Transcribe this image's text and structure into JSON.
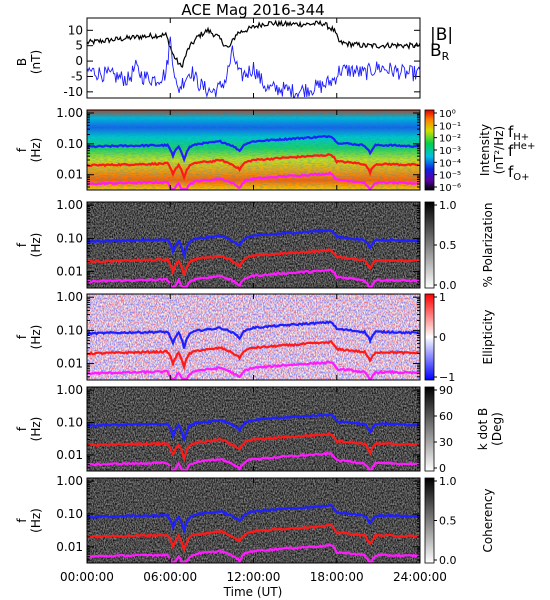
{
  "title": "ACE Mag 2016-344",
  "xlabel": "Time (UT)",
  "xticks": [
    "00:00:00",
    "06:00:00",
    "12:00:00",
    "18:00:00",
    "24:00:00"
  ],
  "colors": {
    "b_total": "#000000",
    "b_r": "#1a1aff",
    "f_h": "#1f1fff",
    "f_he": "#ff1a1a",
    "f_o": "#ff1aff"
  },
  "chart_data": [
    {
      "type": "line",
      "ylabel": [
        "B",
        "(nT)"
      ],
      "ylim": [
        -12,
        14
      ],
      "yticks": [
        "10",
        "5",
        "0",
        "-5",
        "-10"
      ],
      "xlim_hours": [
        0,
        24
      ],
      "legend": [
        "|B|",
        "B"
      ],
      "legend_sub": "R",
      "series": [
        {
          "name": "|B|",
          "x": [
            0,
            1,
            2,
            3,
            4,
            5,
            5.7,
            6.2,
            6.8,
            7.3,
            8,
            8.7,
            9.4,
            10.2,
            10.8,
            11.4,
            12,
            12.6,
            13.2,
            14,
            15,
            16,
            17,
            17.8,
            18.2,
            19,
            20,
            21,
            22,
            23,
            24
          ],
          "y": [
            6,
            6.5,
            7,
            7.5,
            8,
            8.3,
            8.5,
            2,
            -2,
            4,
            8,
            10,
            8,
            4,
            9,
            10,
            11,
            12,
            12.4,
            12,
            12,
            12,
            12.3,
            10,
            6,
            5.5,
            5,
            5,
            5.2,
            5,
            5
          ]
        },
        {
          "name": "B_R",
          "x": [
            0,
            1,
            2,
            3,
            3.5,
            4,
            5,
            5.7,
            6,
            6.5,
            7,
            7.5,
            8,
            8.5,
            9,
            9.5,
            10,
            10.5,
            11,
            11.5,
            12,
            12.5,
            13,
            14,
            15,
            16,
            17,
            17.8,
            18.2,
            19,
            20,
            21,
            22,
            23,
            24
          ],
          "y": [
            -3,
            -4,
            -5,
            -6,
            -2,
            -5,
            -6,
            -4,
            7,
            -10,
            -6,
            -3,
            -7,
            -9,
            -10,
            -9,
            -6,
            3,
            -5,
            -4,
            -2,
            -6,
            -9,
            -9,
            -10,
            -9,
            -8,
            -6,
            -3,
            -3,
            -4,
            -2,
            -3,
            -4,
            -4
          ]
        }
      ]
    },
    {
      "type": "heatmap",
      "ylabel": [
        "f",
        "(Hz)"
      ],
      "yticks": [
        "1.00",
        "0.10",
        "0.01"
      ],
      "colorbar_label": [
        "Intensity",
        "(nT²/Hz)"
      ],
      "colorbar_ticks": [
        "10⁰",
        "10⁻¹",
        "10⁻²",
        "10⁻³",
        "10⁻⁴",
        "10⁻⁵",
        "10⁻⁶"
      ],
      "legend": [
        "f",
        "f",
        "f"
      ],
      "legend_sub": [
        "H+",
        "He+",
        "O+"
      ]
    },
    {
      "type": "heatmap",
      "ylabel": [
        "f",
        "(Hz)"
      ],
      "yticks": [
        "1.00",
        "0.10",
        "0.01"
      ],
      "colorbar_label": [
        "% Polarization"
      ],
      "colorbar_ticks": [
        "1.0",
        "0.5",
        "0.0"
      ]
    },
    {
      "type": "heatmap",
      "ylabel": [
        "f",
        "(Hz)"
      ],
      "yticks": [
        "1.00",
        "0.10",
        "0.01"
      ],
      "colorbar_label": [
        "Ellipticity"
      ],
      "colorbar_ticks": [
        "1",
        "0",
        "−1"
      ]
    },
    {
      "type": "heatmap",
      "ylabel": [
        "f",
        "(Hz)"
      ],
      "yticks": [
        "1.00",
        "0.10",
        "0.01"
      ],
      "colorbar_label": [
        "k dot B",
        "(Deg)"
      ],
      "colorbar_ticks": [
        "90",
        "60",
        "30",
        "0"
      ]
    },
    {
      "type": "heatmap",
      "ylabel": [
        "f",
        "(Hz)"
      ],
      "yticks": [
        "1.00",
        "0.10",
        "0.01"
      ],
      "colorbar_label": [
        "Coherency"
      ],
      "colorbar_ticks": [
        "1.0",
        "0.5",
        "0.0"
      ]
    }
  ],
  "gyrofrequency_lines": {
    "hours": [
      0,
      2,
      4,
      5.8,
      6.2,
      6.6,
      7,
      7.4,
      8,
      9,
      9.6,
      10.4,
      11,
      11.4,
      12,
      13,
      14,
      15,
      16,
      17,
      17.6,
      18,
      19,
      20,
      20.4,
      20.8,
      21,
      22,
      23,
      24
    ],
    "f_h": [
      0.08,
      0.085,
      0.088,
      0.09,
      0.04,
      0.085,
      0.03,
      0.08,
      0.1,
      0.11,
      0.12,
      0.09,
      0.06,
      0.1,
      0.12,
      0.13,
      0.14,
      0.15,
      0.16,
      0.17,
      0.18,
      0.11,
      0.1,
      0.09,
      0.05,
      0.09,
      0.09,
      0.09,
      0.085,
      0.085
    ],
    "f_he": [
      0.02,
      0.021,
      0.022,
      0.023,
      0.01,
      0.021,
      0.008,
      0.02,
      0.025,
      0.027,
      0.03,
      0.022,
      0.015,
      0.025,
      0.03,
      0.032,
      0.035,
      0.037,
      0.04,
      0.042,
      0.045,
      0.027,
      0.025,
      0.022,
      0.012,
      0.022,
      0.022,
      0.022,
      0.021,
      0.021
    ],
    "f_o": [
      0.005,
      0.0053,
      0.0055,
      0.0057,
      0.0025,
      0.0053,
      0.002,
      0.005,
      0.0063,
      0.0068,
      0.0075,
      0.0055,
      0.0038,
      0.0063,
      0.0075,
      0.008,
      0.0088,
      0.0093,
      0.01,
      0.0105,
      0.0112,
      0.0068,
      0.0063,
      0.0055,
      0.003,
      0.0055,
      0.0055,
      0.0055,
      0.0053,
      0.0053
    ]
  }
}
